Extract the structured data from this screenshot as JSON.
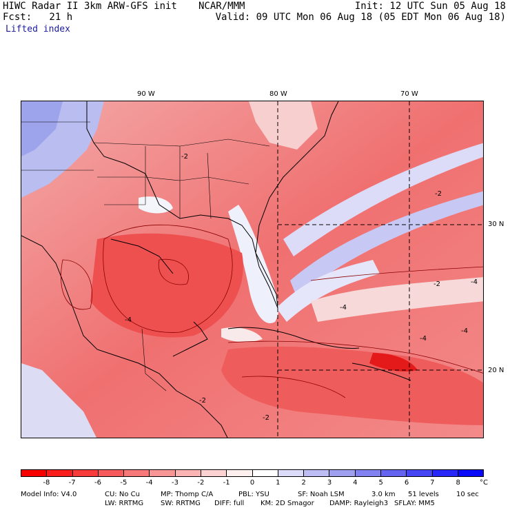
{
  "header": {
    "model_title": "HIWC Radar II 3km ARW-GFS init",
    "institution": "NCAR/MMM",
    "init_time": "Init: 12 UTC Sun 05 Aug 18",
    "forecast": "Fcst:   21 h",
    "valid_time": "Valid: 09 UTC Mon 06 Aug 18 (05 EDT Mon 06 Aug 18)",
    "field_name": "Lifted index"
  },
  "map": {
    "longitude_labels": [
      "90 W",
      "80 W",
      "70 W"
    ],
    "latitude_labels": [
      "30 N",
      "20 N"
    ],
    "contour_labels": [
      "-2",
      "-2",
      "-4",
      "-2",
      "-4",
      "-4",
      "-2",
      "-4",
      "-2",
      "-4"
    ]
  },
  "colorbar": {
    "tick_labels": [
      "-8",
      "-7",
      "-6",
      "-5",
      "-4",
      "-3",
      "-2",
      "-1",
      "0",
      "1",
      "2",
      "3",
      "4",
      "5",
      "6",
      "7",
      "8"
    ],
    "unit": "°C",
    "colors": [
      "#f70000",
      "#fa1e1e",
      "#f83c3c",
      "#f75a5a",
      "#f77878",
      "#f89696",
      "#fab4b4",
      "#fcd2d2",
      "#fff0f0",
      "#ffffff",
      "#dcdcfa",
      "#bebef5",
      "#a0a0f0",
      "#8282f0",
      "#6464f0",
      "#4646f5",
      "#2828f8",
      "#0a0afa"
    ]
  },
  "footer": {
    "line1": [
      "Model Info: V4.0",
      "CU: No Cu",
      "MP: Thomp C/A",
      "PBL: YSU",
      "SF: Noah LSM",
      "3.0 km",
      "51 levels",
      "10 sec"
    ],
    "line2": [
      "LW: RRTMG",
      "SW: RRTMG",
      "DIFF: full",
      "KM: 2D Smagor",
      "DAMP: Rayleigh3",
      "SFLAY: MM5"
    ]
  }
}
